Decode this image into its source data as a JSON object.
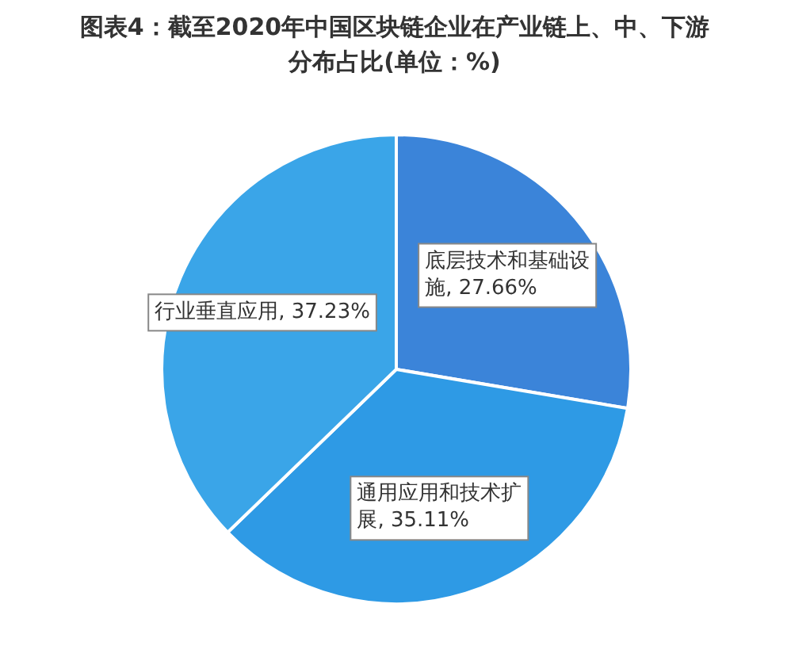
{
  "chart_data": {
    "type": "pie",
    "title": "图表4：截至2020年中国区块链企业在产业链上、中、下游分布占比(单位：%)",
    "categories": [
      "底层技术和基础设施",
      "通用应用和技术扩展",
      "行业垂直应用"
    ],
    "values": [
      27.66,
      35.11,
      37.23
    ],
    "value_labels": [
      "27.66%",
      "35.11%",
      "37.23%"
    ],
    "colors": [
      "#3b84d9",
      "#2e9ae5",
      "#3aa5e8"
    ]
  }
}
